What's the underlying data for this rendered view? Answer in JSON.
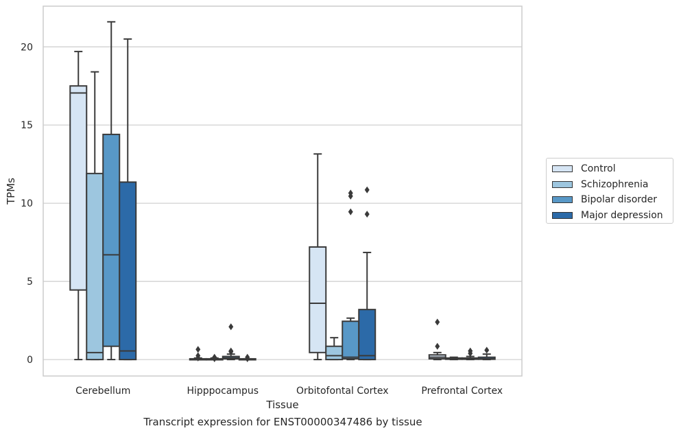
{
  "caption": "Transcript expression for ENST00000347486 by tissue",
  "chart_data": {
    "type": "boxplot",
    "xlabel": "Tissue",
    "ylabel": "TPMs",
    "ylim": [
      -1.05,
      22.6
    ],
    "yticks": [
      0,
      5,
      10,
      15,
      20
    ],
    "grid": "horizontal",
    "legend_position": "right",
    "categories": [
      "Cerebellum",
      "Hipppocampus",
      "Orbitofontal Cortex",
      "Prefrontal Cortex"
    ],
    "series": [
      {
        "name": "Control",
        "color": "#d6e5f4",
        "boxes": [
          {
            "whislo": 0,
            "q1": 4.45,
            "med": 17.05,
            "q3": 17.5,
            "whishi": 19.7,
            "fliers": []
          },
          {
            "whislo": 0,
            "q1": 0,
            "med": 0.02,
            "q3": 0.05,
            "whishi": 0.1,
            "fliers": [
              0.1,
              0.25,
              0.65
            ]
          },
          {
            "whislo": 0,
            "q1": 0.45,
            "med": 3.6,
            "q3": 7.2,
            "whishi": 13.15,
            "fliers": []
          },
          {
            "whislo": 0,
            "q1": 0.05,
            "med": 0.15,
            "q3": 0.3,
            "whishi": 0.45,
            "fliers": [
              0.85,
              2.4
            ]
          }
        ]
      },
      {
        "name": "Schizophrenia",
        "color": "#9dc6df",
        "boxes": [
          {
            "whislo": 0,
            "q1": 0,
            "med": 0.45,
            "q3": 11.9,
            "whishi": 18.4,
            "fliers": []
          },
          {
            "whislo": 0,
            "q1": 0,
            "med": 0.02,
            "q3": 0.05,
            "whishi": 0.1,
            "fliers": [
              0.05,
              0.15
            ]
          },
          {
            "whislo": 0,
            "q1": 0,
            "med": 0.25,
            "q3": 0.85,
            "whishi": 1.4,
            "fliers": []
          },
          {
            "whislo": 0,
            "q1": 0.02,
            "med": 0.05,
            "q3": 0.1,
            "whishi": 0.15,
            "fliers": []
          }
        ]
      },
      {
        "name": "Bipolar disorder",
        "color": "#5898c7",
        "boxes": [
          {
            "whislo": 0,
            "q1": 0.85,
            "med": 6.7,
            "q3": 14.4,
            "whishi": 21.6,
            "fliers": []
          },
          {
            "whislo": 0,
            "q1": 0.05,
            "med": 0.1,
            "q3": 0.2,
            "whishi": 0.35,
            "fliers": [
              0.5,
              0.55,
              2.1
            ]
          },
          {
            "whislo": 0,
            "q1": 0.05,
            "med": 0.15,
            "q3": 2.45,
            "whishi": 2.65,
            "fliers": [
              9.45,
              10.45,
              10.65
            ]
          },
          {
            "whislo": 0,
            "q1": 0.02,
            "med": 0.05,
            "q3": 0.1,
            "whishi": 0.2,
            "fliers": [
              0.4,
              0.55
            ]
          }
        ]
      },
      {
        "name": "Major depression",
        "color": "#2c6aa8",
        "boxes": [
          {
            "whislo": 0,
            "q1": 0,
            "med": 0.55,
            "q3": 11.35,
            "whishi": 20.5,
            "fliers": []
          },
          {
            "whislo": 0,
            "q1": 0,
            "med": 0.02,
            "q3": 0.05,
            "whishi": 0.05,
            "fliers": [
              0.05,
              0.15
            ]
          },
          {
            "whislo": 0,
            "q1": 0,
            "med": 0.25,
            "q3": 3.2,
            "whishi": 6.85,
            "fliers": [
              9.3,
              10.85
            ]
          },
          {
            "whislo": 0,
            "q1": 0.02,
            "med": 0.05,
            "q3": 0.15,
            "whishi": 0.35,
            "fliers": [
              0.6
            ]
          }
        ]
      }
    ]
  }
}
